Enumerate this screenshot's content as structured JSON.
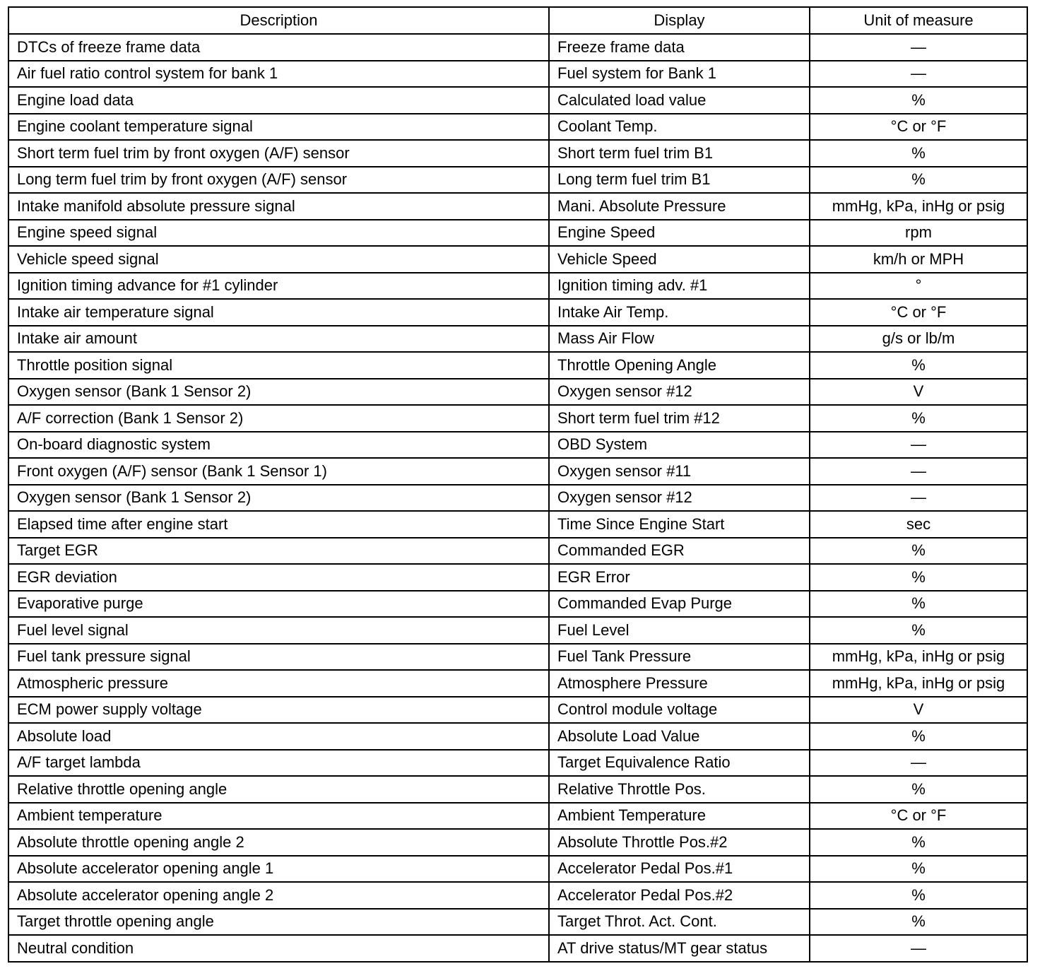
{
  "headers": {
    "description": "Description",
    "display": "Display",
    "unit": "Unit of measure"
  },
  "rows": [
    {
      "description": "DTCs of freeze frame data",
      "display": "Freeze frame data",
      "unit": "—"
    },
    {
      "description": "Air fuel ratio control system for bank 1",
      "display": "Fuel system for Bank 1",
      "unit": "—"
    },
    {
      "description": "Engine load data",
      "display": "Calculated load value",
      "unit": "%"
    },
    {
      "description": "Engine coolant temperature signal",
      "display": "Coolant Temp.",
      "unit": "°C or °F"
    },
    {
      "description": "Short term fuel trim by front oxygen (A/F) sensor",
      "display": "Short term fuel trim B1",
      "unit": "%"
    },
    {
      "description": "Long term fuel trim by front oxygen (A/F) sensor",
      "display": "Long term fuel trim B1",
      "unit": "%"
    },
    {
      "description": "Intake manifold absolute pressure signal",
      "display": "Mani. Absolute Pressure",
      "unit": "mmHg, kPa, inHg or psig"
    },
    {
      "description": "Engine speed signal",
      "display": "Engine Speed",
      "unit": "rpm"
    },
    {
      "description": "Vehicle speed signal",
      "display": "Vehicle Speed",
      "unit": "km/h or MPH"
    },
    {
      "description": "Ignition timing advance for #1 cylinder",
      "display": "Ignition timing adv. #1",
      "unit": "°"
    },
    {
      "description": "Intake air temperature signal",
      "display": "Intake Air Temp.",
      "unit": "°C or °F"
    },
    {
      "description": "Intake air amount",
      "display": "Mass Air Flow",
      "unit": "g/s or lb/m"
    },
    {
      "description": "Throttle position signal",
      "display": "Throttle Opening Angle",
      "unit": "%"
    },
    {
      "description": "Oxygen sensor (Bank 1 Sensor 2)",
      "display": "Oxygen sensor #12",
      "unit": "V"
    },
    {
      "description": "A/F correction (Bank 1 Sensor 2)",
      "display": "Short term fuel trim #12",
      "unit": "%"
    },
    {
      "description": "On-board diagnostic system",
      "display": "OBD System",
      "unit": "—"
    },
    {
      "description": "Front oxygen (A/F) sensor (Bank 1 Sensor 1)",
      "display": "Oxygen sensor #11",
      "unit": "—"
    },
    {
      "description": "Oxygen sensor (Bank 1 Sensor 2)",
      "display": "Oxygen sensor #12",
      "unit": "—"
    },
    {
      "description": "Elapsed time after engine start",
      "display": "Time Since Engine Start",
      "unit": "sec"
    },
    {
      "description": "Target EGR",
      "display": "Commanded EGR",
      "unit": "%"
    },
    {
      "description": "EGR deviation",
      "display": "EGR Error",
      "unit": "%"
    },
    {
      "description": "Evaporative purge",
      "display": "Commanded Evap Purge",
      "unit": "%"
    },
    {
      "description": "Fuel level signal",
      "display": "Fuel Level",
      "unit": "%"
    },
    {
      "description": "Fuel tank pressure signal",
      "display": "Fuel Tank Pressure",
      "unit": "mmHg, kPa, inHg or psig"
    },
    {
      "description": "Atmospheric pressure",
      "display": "Atmosphere Pressure",
      "unit": "mmHg, kPa, inHg or psig"
    },
    {
      "description": "ECM power supply voltage",
      "display": "Control module voltage",
      "unit": "V"
    },
    {
      "description": "Absolute load",
      "display": "Absolute Load Value",
      "unit": "%"
    },
    {
      "description": "A/F target lambda",
      "display": "Target Equivalence Ratio",
      "unit": "—"
    },
    {
      "description": "Relative throttle opening angle",
      "display": "Relative Throttle Pos.",
      "unit": "%"
    },
    {
      "description": "Ambient temperature",
      "display": "Ambient Temperature",
      "unit": "°C or °F"
    },
    {
      "description": "Absolute throttle opening angle 2",
      "display": "Absolute Throttle Pos.#2",
      "unit": "%"
    },
    {
      "description": "Absolute accelerator opening angle 1",
      "display": "Accelerator Pedal Pos.#1",
      "unit": "%"
    },
    {
      "description": "Absolute accelerator opening angle 2",
      "display": "Accelerator Pedal Pos.#2",
      "unit": "%"
    },
    {
      "description": "Target throttle opening angle",
      "display": "Target Throt. Act. Cont.",
      "unit": "%"
    },
    {
      "description": "Neutral condition",
      "display": "AT drive status/MT gear status",
      "unit": "—"
    }
  ]
}
